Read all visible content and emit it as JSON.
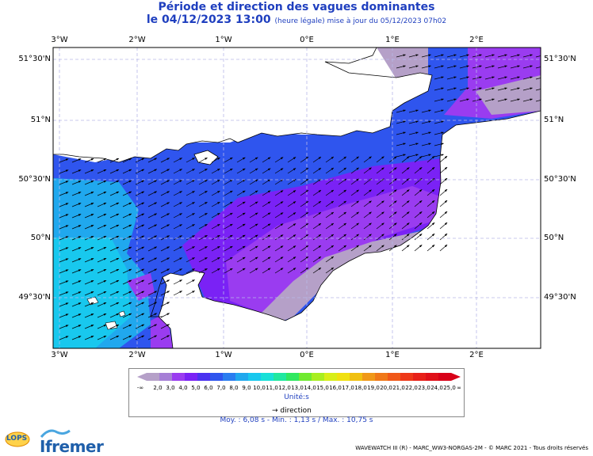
{
  "header": {
    "title": "Période et direction des vagues dominantes",
    "date_time": "le 04/12/2023 13:00",
    "update_note": "(heure légale) mise à jour du 05/12/2023 07h02"
  },
  "map": {
    "lon_ticks": [
      "3°W",
      "2°W",
      "1°W",
      "0°E",
      "1°E",
      "2°E"
    ],
    "lat_ticks": [
      "51°30'N",
      "51°N",
      "50°30'N",
      "50°N",
      "49°30'N"
    ],
    "land_color": "#ffffff",
    "coast_color": "#000000",
    "grid_color": "#b8b8e8",
    "dominant_direction": "towards east-northeast"
  },
  "legend": {
    "colorbar_values": [
      "2,0",
      "3,0",
      "4,0",
      "5,0",
      "6,0",
      "7,0",
      "8,0",
      "9,0",
      "10,0",
      "11,0",
      "12,0",
      "13,0",
      "14,0",
      "15,0",
      "16,0",
      "17,0",
      "18,0",
      "19,0",
      "20,0",
      "21,0",
      "22,0",
      "23,0",
      "24,0",
      "25,0"
    ],
    "colorbar_colors": [
      "#b5a0c8",
      "#a67fd6",
      "#9a3cf0",
      "#7a22f5",
      "#4a32f0",
      "#2f55ee",
      "#2a7df0",
      "#20a8ee",
      "#18c8ee",
      "#18e0d8",
      "#20e8a0",
      "#30e860",
      "#70ea30",
      "#a8ee20",
      "#d8ee18",
      "#f0e010",
      "#f0c010",
      "#f09818",
      "#f07818",
      "#f05818",
      "#ee3818",
      "#e82018",
      "#e01018",
      "#d80018"
    ],
    "neg_inf": "-∞",
    "pos_inf": "∞",
    "unit_label": "Unité:s",
    "direction_label": "direction",
    "arrow_glyph": "→"
  },
  "stats": {
    "text": "Moy. : 6,08 s   -   Min. : 1,13 s / Max. : 10,75 s"
  },
  "footer": {
    "credit": "WAVEWATCH III (R) - MARC_WW3-NORGAS-2M - © MARC 2021 - Tous droits réservés",
    "brand": "Ifremer",
    "lops": "LOPS"
  }
}
